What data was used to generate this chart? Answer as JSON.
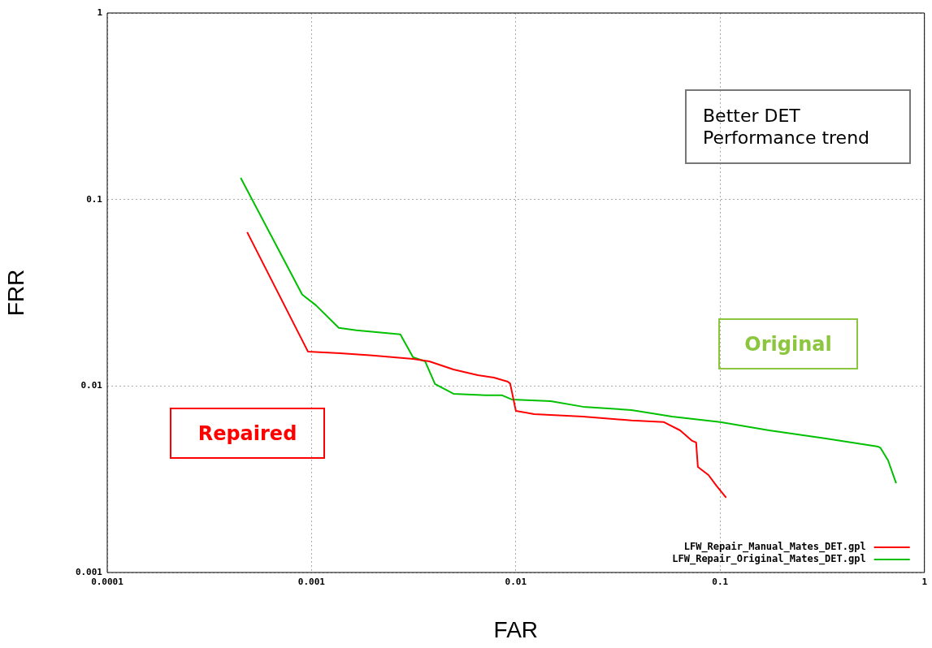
{
  "chart_data": {
    "type": "line",
    "xlabel": "FAR",
    "ylabel": "FRR",
    "log": "xy",
    "xlim": [
      0.0001,
      1
    ],
    "ylim": [
      0.001,
      1
    ],
    "xticks": [
      0.0001,
      0.001,
      0.01,
      0.1,
      1
    ],
    "yticks": [
      0.001,
      0.01,
      0.1,
      1
    ],
    "grid": true,
    "legend": "bottom right",
    "marker": "none",
    "line_style": "solid",
    "annotations": [
      "Better DET\nPerformance trend",
      "Original",
      "Repaired"
    ],
    "series": [
      {
        "name": "LFW_Repair_Manual_Mates_DET.gpl",
        "color": "#ff0000",
        "x": [
          0.000484,
          0.00096,
          0.00138,
          0.00199,
          0.00314,
          0.00377,
          0.00495,
          0.00651,
          0.00781,
          0.00913,
          0.00938,
          0.01,
          0.0123,
          0.0213,
          0.0368,
          0.0531,
          0.0637,
          0.073,
          0.0763,
          0.0778,
          0.0877,
          0.0959,
          0.107
        ],
        "values": [
          0.0668,
          0.0153,
          0.015,
          0.01456,
          0.01397,
          0.01355,
          0.01227,
          0.01143,
          0.0111,
          0.01055,
          0.0103,
          0.00736,
          0.00707,
          0.00686,
          0.00653,
          0.0064,
          0.00578,
          0.00508,
          0.00498,
          0.00368,
          0.00333,
          0.00292,
          0.00252
        ]
      },
      {
        "name": "LFW_Repair_Original_Mates_DET.gpl",
        "color": "#00c000",
        "x": [
          0.00045,
          0.0009,
          0.00105,
          0.00136,
          0.00166,
          0.00272,
          0.00314,
          0.0036,
          0.00402,
          0.00495,
          0.00713,
          0.00857,
          0.00955,
          0.0148,
          0.0213,
          0.0368,
          0.0581,
          0.1,
          0.174,
          0.329,
          0.594,
          0.61,
          0.664,
          0.727
        ],
        "values": [
          0.1306,
          0.0309,
          0.0271,
          0.0205,
          0.0199,
          0.0189,
          0.01426,
          0.01355,
          0.01024,
          0.00908,
          0.00891,
          0.00891,
          0.00847,
          0.0083,
          0.00774,
          0.00743,
          0.00686,
          0.0064,
          0.00578,
          0.00523,
          0.00473,
          0.00465,
          0.00399,
          0.00301
        ]
      }
    ]
  }
}
